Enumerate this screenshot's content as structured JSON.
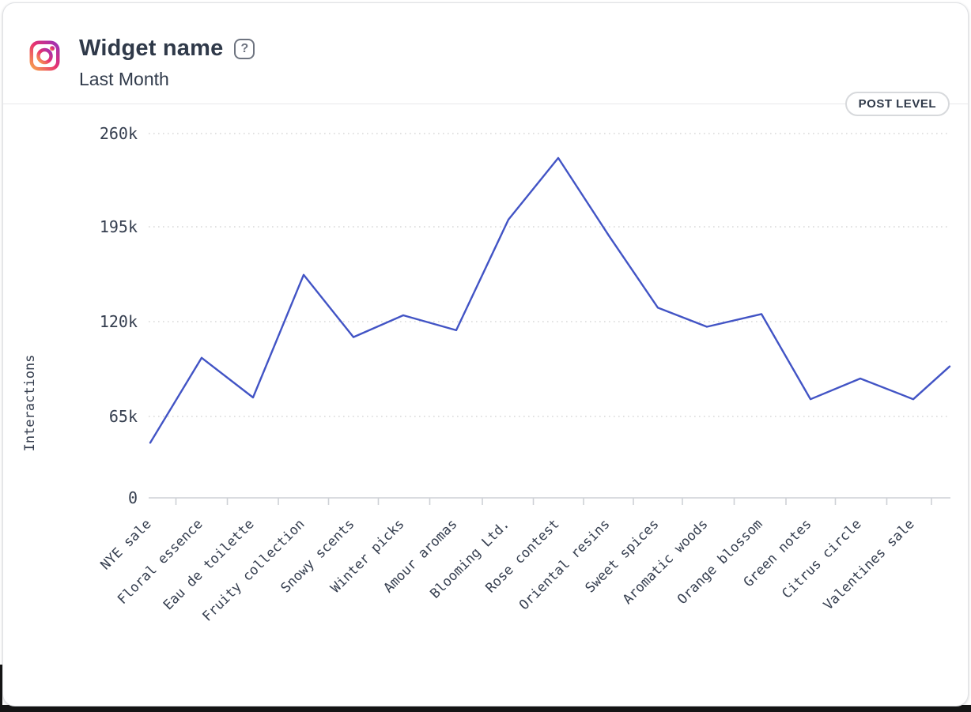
{
  "header": {
    "title": "Widget name",
    "subtitle": "Last Month",
    "help_glyph": "?",
    "platform_icon": "instagram-icon"
  },
  "badge": {
    "label": "POST LEVEL"
  },
  "chart_data": {
    "type": "line",
    "title": "",
    "xlabel": "",
    "ylabel": "Interactions",
    "legend": "none",
    "grid": "horizontal-dotted",
    "line_color": "#4254c5",
    "axis_text_color": "#353e4f",
    "yticks": [
      {
        "label": "0",
        "value": 0
      },
      {
        "label": "65k",
        "value": 65000
      },
      {
        "label": "120k",
        "value": 120000
      },
      {
        "label": "195k",
        "value": 195000
      },
      {
        "label": "260k",
        "value": 260000
      }
    ],
    "categories": [
      "NYE sale",
      "Floral essence",
      "Eau de toilette",
      "Fruity collection",
      "Snowy scents",
      "Winter picks",
      "Amour aromas",
      "Blooming Ltd.",
      "Rose contest",
      "Oriental resins",
      "Sweet spices",
      "Aromatic woods",
      "Orange blossom",
      "Green notes",
      "Citrus circle",
      "Valentines sale"
    ],
    "points": [
      {
        "x_frac": 0.0,
        "value": 44000
      },
      {
        "x_frac": 0.0643,
        "value": 99000
      },
      {
        "x_frac": 0.1286,
        "value": 76000
      },
      {
        "x_frac": 0.1919,
        "value": 157000
      },
      {
        "x_frac": 0.2542,
        "value": 111000
      },
      {
        "x_frac": 0.3165,
        "value": 125000
      },
      {
        "x_frac": 0.3828,
        "value": 115000
      },
      {
        "x_frac": 0.4481,
        "value": 200000
      },
      {
        "x_frac": 0.5104,
        "value": 243000
      },
      {
        "x_frac": 0.5737,
        "value": 188000
      },
      {
        "x_frac": 0.635,
        "value": 131000
      },
      {
        "x_frac": 0.6963,
        "value": 117000
      },
      {
        "x_frac": 0.7646,
        "value": 126000
      },
      {
        "x_frac": 0.8259,
        "value": 75000
      },
      {
        "x_frac": 0.8882,
        "value": 87000
      },
      {
        "x_frac": 0.9545,
        "value": 75000
      },
      {
        "x_frac": 1.0,
        "value": 94000
      }
    ],
    "last_point_unlabeled": true,
    "x_tick_rule": "midpoints-between-points"
  }
}
